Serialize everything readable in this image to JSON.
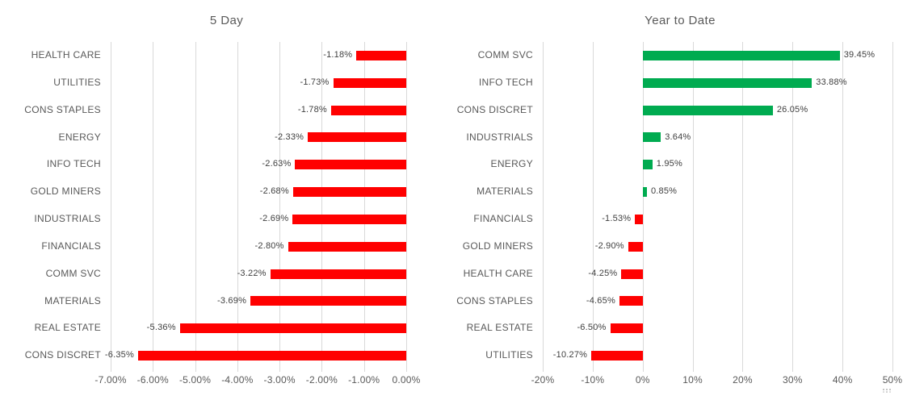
{
  "page": {
    "background": "#ffffff"
  },
  "colors": {
    "positive_bar": "#00AB50",
    "negative_bar": "#FF0000",
    "gridline": "#D9D9D9",
    "title_text": "#595959",
    "axis_text": "#595959",
    "data_label_text": "#404040"
  },
  "chart_data": [
    {
      "type": "bar",
      "orientation": "horizontal",
      "title": "5 Day",
      "categories": [
        "HEALTH CARE",
        "UTILITIES",
        "CONS STAPLES",
        "ENERGY",
        "INFO TECH",
        "GOLD MINERS",
        "INDUSTRIALS",
        "FINANCIALS",
        "COMM SVC",
        "MATERIALS",
        "REAL ESTATE",
        "CONS DISCRET"
      ],
      "values": [
        -1.18,
        -1.73,
        -1.78,
        -2.33,
        -2.63,
        -2.68,
        -2.69,
        -2.8,
        -3.22,
        -3.69,
        -5.36,
        -6.35
      ],
      "labels": [
        "-1.18%",
        "-1.73%",
        "-1.78%",
        "-2.33%",
        "-2.63%",
        "-2.68%",
        "-2.69%",
        "-2.80%",
        "-3.22%",
        "-3.69%",
        "-5.36%",
        "-6.35%"
      ],
      "xlim": [
        -7,
        0
      ],
      "grid": true,
      "legend": "none",
      "ticks": [
        {
          "value": -7,
          "label": "-7.00%"
        },
        {
          "value": -6,
          "label": "-6.00%"
        },
        {
          "value": -5,
          "label": "-5.00%"
        },
        {
          "value": -4,
          "label": "-4.00%"
        },
        {
          "value": -3,
          "label": "-3.00%"
        },
        {
          "value": -2,
          "label": "-2.00%"
        },
        {
          "value": -1,
          "label": "-1.00%"
        },
        {
          "value": 0,
          "label": "0.00%"
        }
      ]
    },
    {
      "type": "bar",
      "orientation": "horizontal",
      "title": "Year to Date",
      "categories": [
        "COMM SVC",
        "INFO TECH",
        "CONS DISCRET",
        "INDUSTRIALS",
        "ENERGY",
        "MATERIALS",
        "FINANCIALS",
        "GOLD MINERS",
        "HEALTH CARE",
        "CONS STAPLES",
        "REAL ESTATE",
        "UTILITIES"
      ],
      "values": [
        39.45,
        33.88,
        26.05,
        3.64,
        1.95,
        0.85,
        -1.53,
        -2.9,
        -4.25,
        -4.65,
        -6.5,
        -10.27
      ],
      "labels": [
        "39.45%",
        "33.88%",
        "26.05%",
        "3.64%",
        "1.95%",
        "0.85%",
        "-1.53%",
        "-2.90%",
        "-4.25%",
        "-4.65%",
        "-6.50%",
        "-10.27%"
      ],
      "xlim": [
        -20,
        50
      ],
      "grid": true,
      "legend": "none",
      "ticks": [
        {
          "value": -20,
          "label": "-20%"
        },
        {
          "value": -10,
          "label": "-10%"
        },
        {
          "value": 0,
          "label": "0%"
        },
        {
          "value": 10,
          "label": "10%"
        },
        {
          "value": 20,
          "label": "20%"
        },
        {
          "value": 30,
          "label": "30%"
        },
        {
          "value": 40,
          "label": "40%"
        },
        {
          "value": 50,
          "label": "50%"
        }
      ]
    }
  ]
}
